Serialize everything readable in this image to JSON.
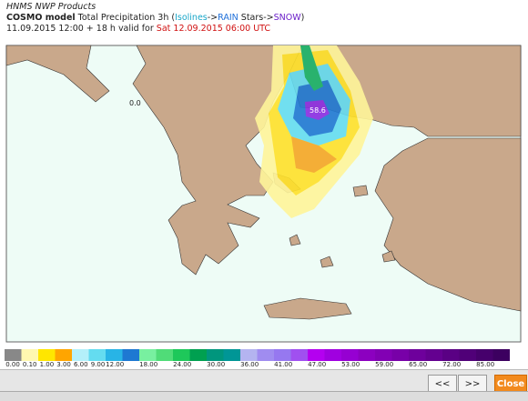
{
  "header": {
    "product": "HNMS NWP Products",
    "model": "COSMO model",
    "title": " Total Precipitation 3h (",
    "isolines": "Isolines",
    "arrow1": "->",
    "rain": "RAIN",
    "stars": " Stars",
    "arrow2": "->",
    "snow": "SNOW",
    "close_paren": ")",
    "run": "11.09.2015 12:00 + 18 h valid for ",
    "valid": "Sat 12.09.2015 06:00 UTC"
  },
  "map": {
    "labels": [
      "0.0",
      "58.6"
    ]
  },
  "legend": {
    "labels": [
      "0.00",
      "0.10",
      "1.00",
      "3.00",
      "6.00",
      "9.00",
      "12.00",
      "18.00",
      "24.00",
      "30.00",
      "36.00",
      "41.00",
      "47.00",
      "53.00",
      "59.00",
      "65.00",
      "72.00",
      "85.00"
    ]
  },
  "controls": {
    "prev": "<<",
    "next": ">>",
    "close": "Close"
  }
}
